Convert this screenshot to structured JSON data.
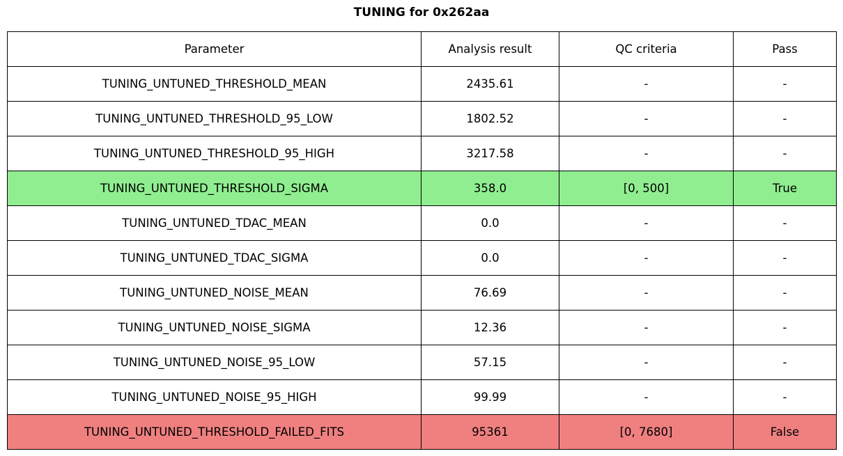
{
  "title": "TUNING for 0x262aa",
  "colors": {
    "pass_row": "#90EE90",
    "fail_row": "#F08080",
    "border": "#000000",
    "background": "#FFFFFF"
  },
  "chart_data": {
    "type": "table",
    "title": "TUNING for 0x262aa",
    "columns": [
      "Parameter",
      "Analysis result",
      "QC criteria",
      "Pass"
    ],
    "rows": [
      {
        "parameter": "TUNING_UNTUNED_THRESHOLD_MEAN",
        "result": "2435.61",
        "qc": "-",
        "pass": "-",
        "status": "none"
      },
      {
        "parameter": "TUNING_UNTUNED_THRESHOLD_95_LOW",
        "result": "1802.52",
        "qc": "-",
        "pass": "-",
        "status": "none"
      },
      {
        "parameter": "TUNING_UNTUNED_THRESHOLD_95_HIGH",
        "result": "3217.58",
        "qc": "-",
        "pass": "-",
        "status": "none"
      },
      {
        "parameter": "TUNING_UNTUNED_THRESHOLD_SIGMA",
        "result": "358.0",
        "qc": "[0, 500]",
        "pass": "True",
        "status": "pass"
      },
      {
        "parameter": "TUNING_UNTUNED_TDAC_MEAN",
        "result": "0.0",
        "qc": "-",
        "pass": "-",
        "status": "none"
      },
      {
        "parameter": "TUNING_UNTUNED_TDAC_SIGMA",
        "result": "0.0",
        "qc": "-",
        "pass": "-",
        "status": "none"
      },
      {
        "parameter": "TUNING_UNTUNED_NOISE_MEAN",
        "result": "76.69",
        "qc": "-",
        "pass": "-",
        "status": "none"
      },
      {
        "parameter": "TUNING_UNTUNED_NOISE_SIGMA",
        "result": "12.36",
        "qc": "-",
        "pass": "-",
        "status": "none"
      },
      {
        "parameter": "TUNING_UNTUNED_NOISE_95_LOW",
        "result": "57.15",
        "qc": "-",
        "pass": "-",
        "status": "none"
      },
      {
        "parameter": "TUNING_UNTUNED_NOISE_95_HIGH",
        "result": "99.99",
        "qc": "-",
        "pass": "-",
        "status": "none"
      },
      {
        "parameter": "TUNING_UNTUNED_THRESHOLD_FAILED_FITS",
        "result": "95361",
        "qc": "[0, 7680]",
        "pass": "False",
        "status": "fail"
      }
    ]
  }
}
